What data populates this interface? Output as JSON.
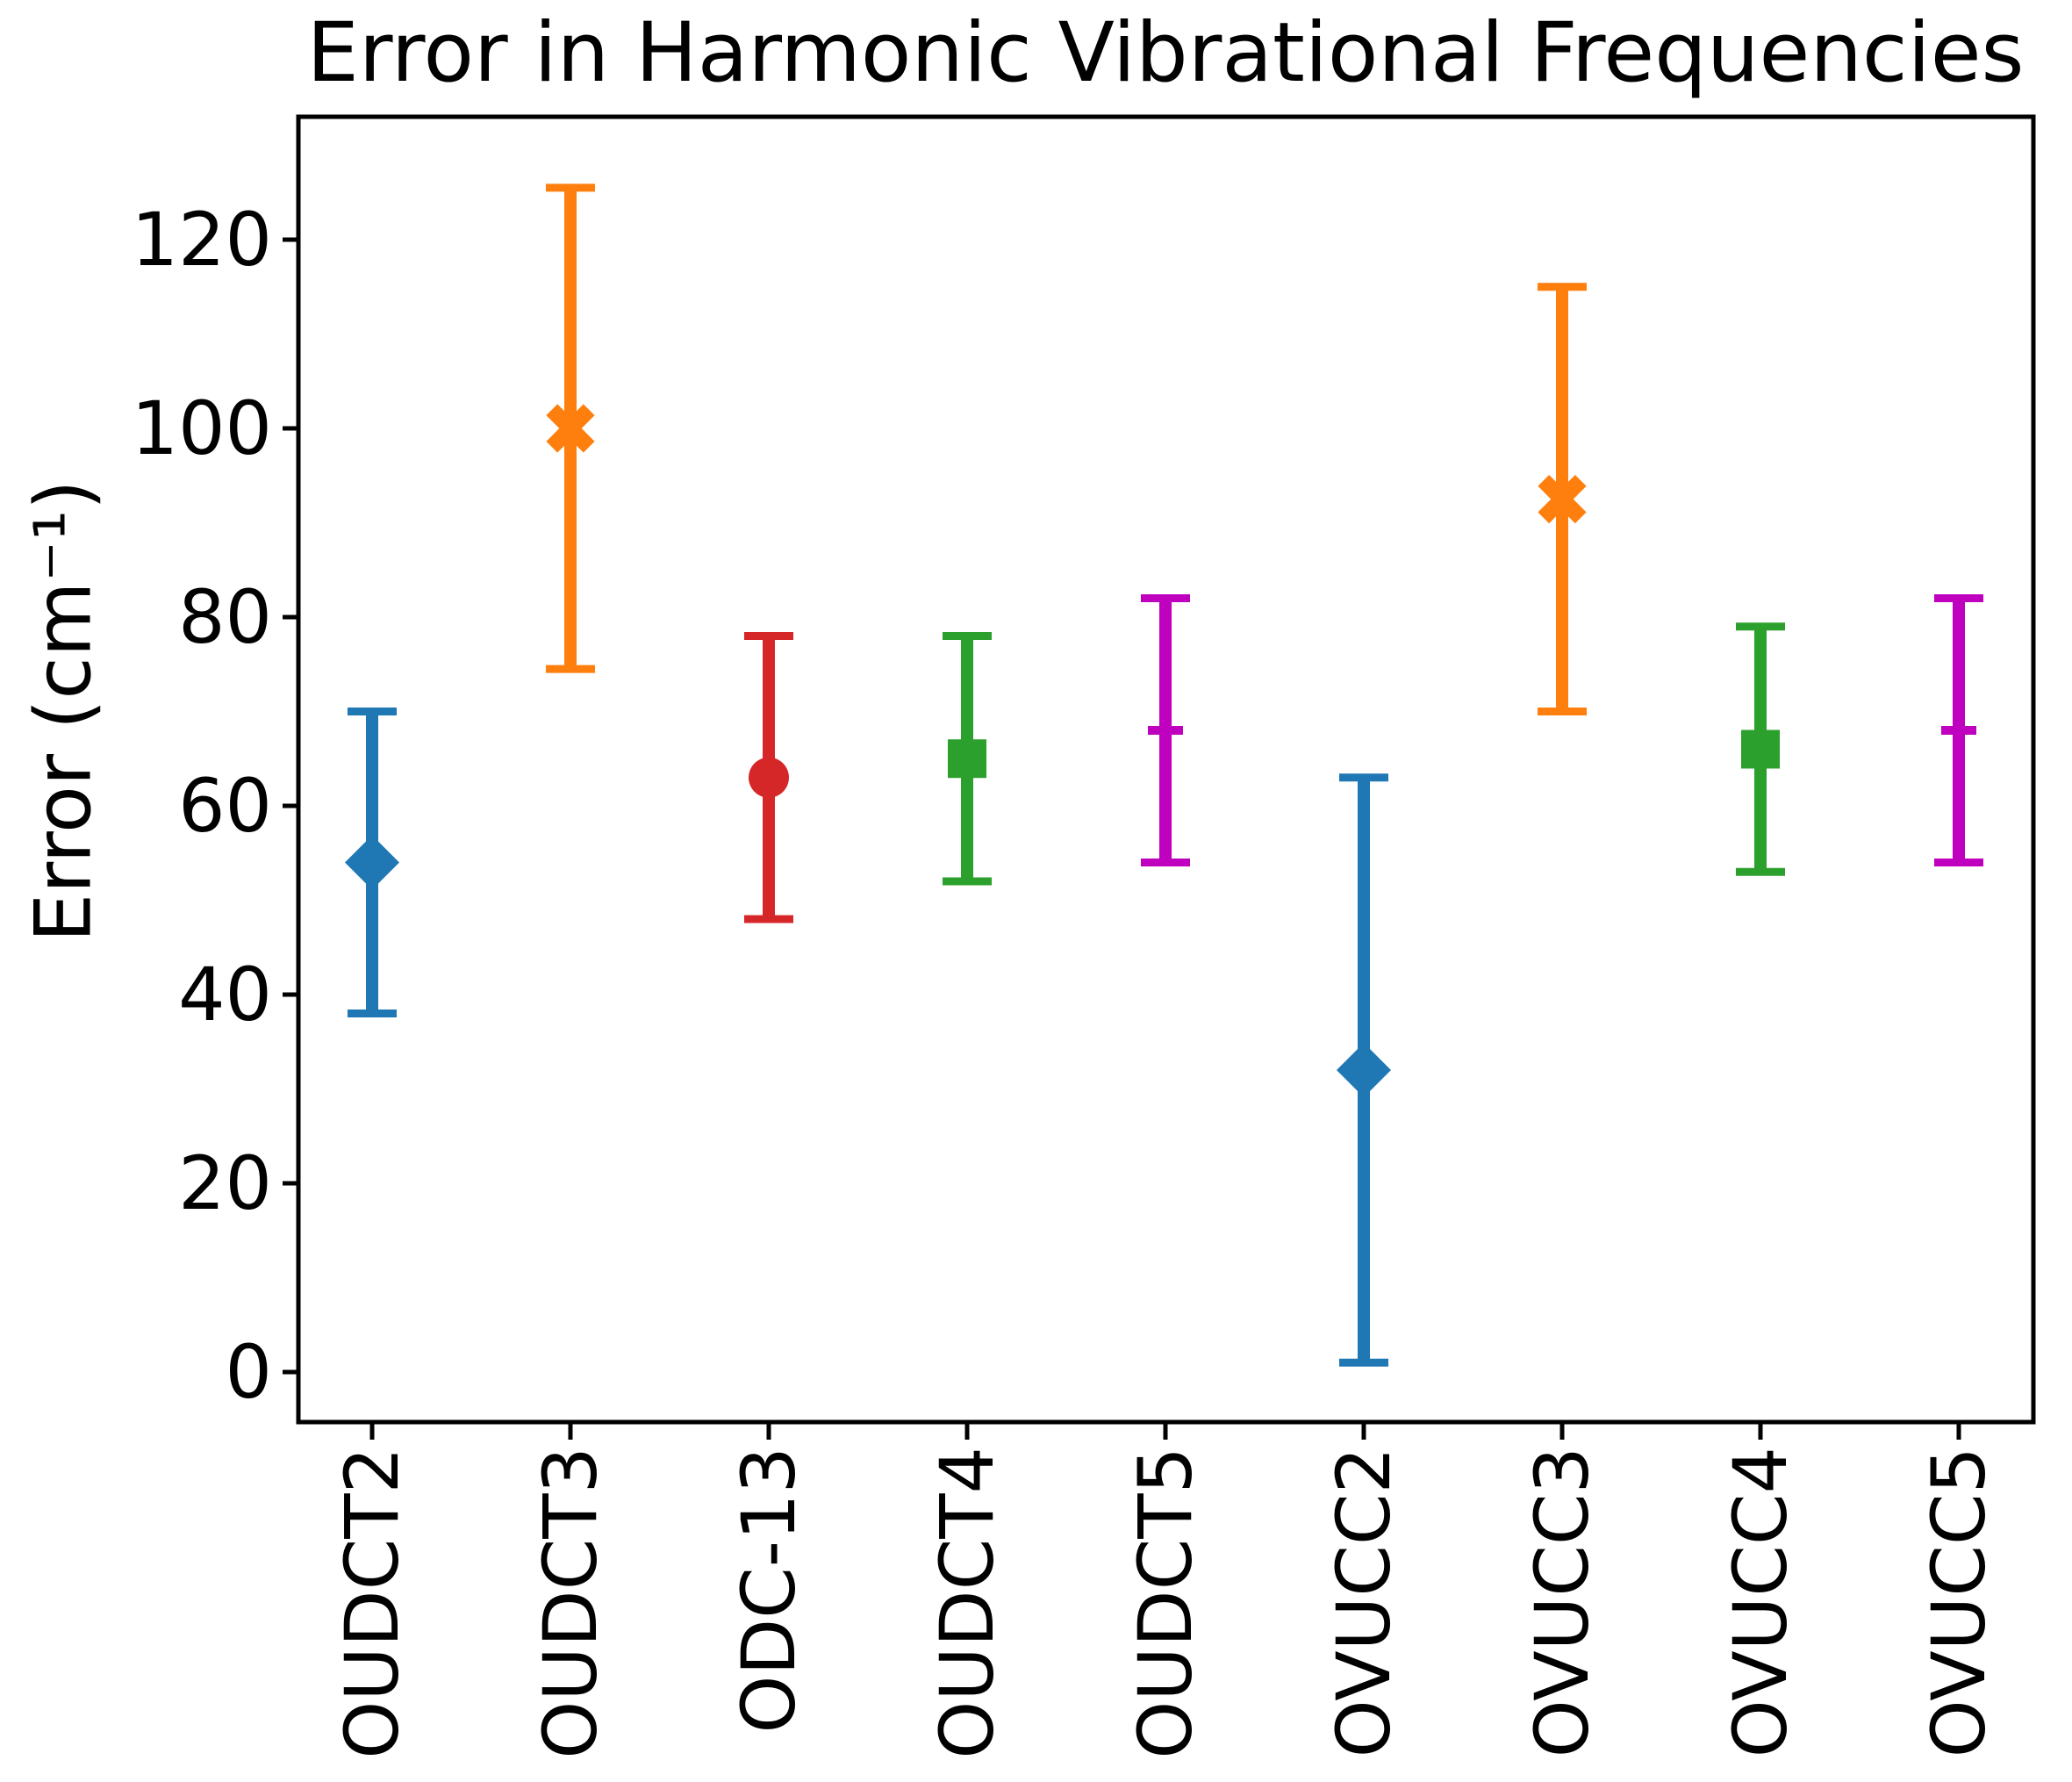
{
  "chart_data": {
    "type": "errorbar",
    "title": "Error in Harmonic Vibrational Frequencies",
    "ylabel": "Error (cm⁻¹)",
    "xlabel": "",
    "categories": [
      "OUDCT2",
      "OUDCT3",
      "ODC-13",
      "OUDCT4",
      "OUDCT5",
      "OVUCC2",
      "OVUCC3",
      "OVUCC4",
      "OVUCC5"
    ],
    "yticks": [
      0,
      20,
      40,
      60,
      80,
      100,
      120
    ],
    "ylim": [
      -5.3,
      133
    ],
    "grid": false,
    "legend": "none",
    "background": "#ffffff",
    "axis_color": "#000000",
    "points": [
      {
        "label": "OUDCT2",
        "mean": 54,
        "lower": 38,
        "upper": 70,
        "color": "#1f77b4",
        "marker": "diamond"
      },
      {
        "label": "OUDCT3",
        "mean": 100,
        "lower": 74.5,
        "upper": 125.5,
        "color": "#ff7f0e",
        "marker": "x"
      },
      {
        "label": "ODC-13",
        "mean": 63,
        "lower": 48,
        "upper": 78,
        "color": "#d62728",
        "marker": "circle"
      },
      {
        "label": "OUDCT4",
        "mean": 65,
        "lower": 52,
        "upper": 78,
        "color": "#2ca02c",
        "marker": "square"
      },
      {
        "label": "OUDCT5",
        "mean": 68,
        "lower": 54,
        "upper": 82,
        "color": "#bf00bf",
        "marker": "plus"
      },
      {
        "label": "OVUCC2",
        "mean": 32,
        "lower": 1,
        "upper": 63,
        "color": "#1f77b4",
        "marker": "diamond"
      },
      {
        "label": "OVUCC3",
        "mean": 92.5,
        "lower": 70,
        "upper": 115,
        "color": "#ff7f0e",
        "marker": "x"
      },
      {
        "label": "OVUCC4",
        "mean": 66,
        "lower": 53,
        "upper": 79,
        "color": "#2ca02c",
        "marker": "square"
      },
      {
        "label": "OVUCC5",
        "mean": 68,
        "lower": 54,
        "upper": 82,
        "color": "#bf00bf",
        "marker": "plus"
      }
    ]
  }
}
